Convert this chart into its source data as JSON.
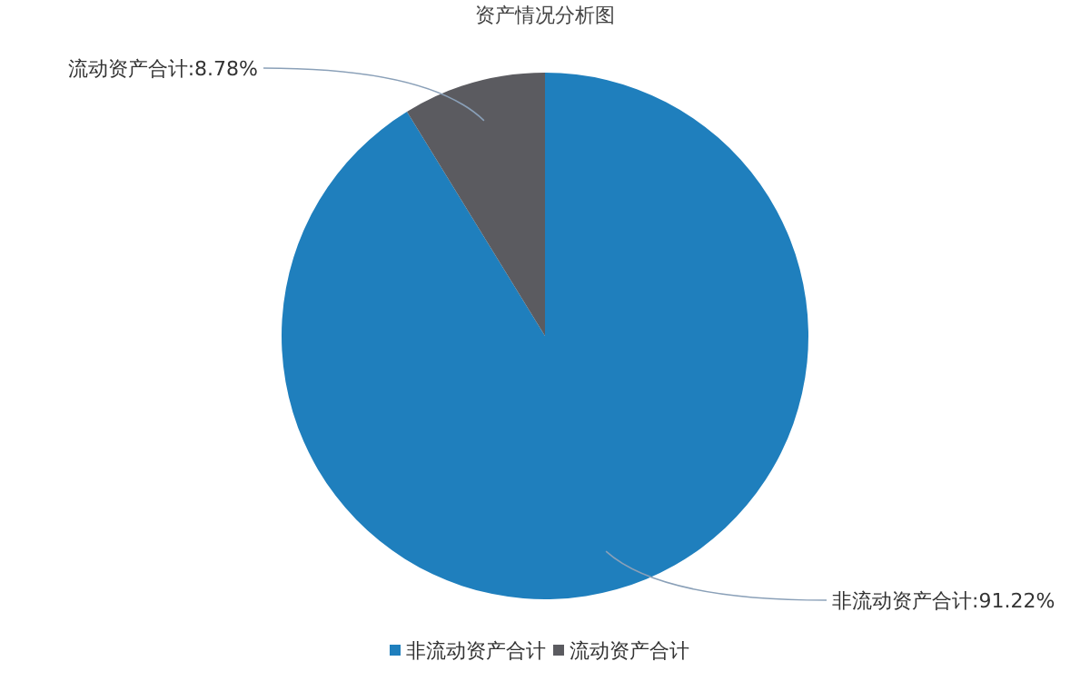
{
  "chart_data": {
    "type": "pie",
    "title": "资产情况分析图",
    "categories": [
      "非流动资产合计",
      "流动资产合计"
    ],
    "values": [
      91.22,
      8.78
    ],
    "colors": [
      "#1f7fbd",
      "#5b5b60"
    ],
    "value_labels": [
      "非流动资产合计:91.22%",
      "流动资产合计:8.78%"
    ],
    "legend": "bottom"
  }
}
